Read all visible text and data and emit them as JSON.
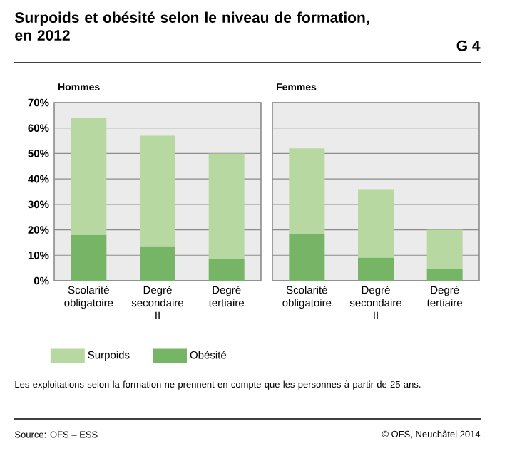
{
  "chart_data": [
    {
      "type": "other",
      "title": "Surpoids et obésité selon le niveau de formation, en 2012",
      "annotations": [
        "G 4",
        "Les exploitations selon la formation ne prennent en compte que les personnes à partir de 25 ans.",
        "Source: OFS – ESS",
        "© OFS, Neuchâtel 2014"
      ]
    },
    {
      "type": "bar",
      "title": "Hommes",
      "stacked": true,
      "legend": "bottom",
      "grid": "y",
      "categories": [
        "Scolarité obligatoire",
        "Degré secondaire II",
        "Degré tertiaire"
      ],
      "series": [
        {
          "name": "Obésité",
          "color": "#76b565",
          "values": [
            18,
            13.5,
            8.5
          ]
        },
        {
          "name": "Surpoids",
          "color": "#b8d8a2",
          "values": [
            46,
            43.5,
            41.5
          ]
        }
      ],
      "ylim": [
        0,
        70
      ],
      "yticks": [
        {
          "value": 0,
          "label": "0%"
        },
        {
          "value": 10,
          "label": "10%"
        },
        {
          "value": 20,
          "label": "20%"
        },
        {
          "value": 30,
          "label": "30%"
        },
        {
          "value": 40,
          "label": "40%"
        },
        {
          "value": 50,
          "label": "50%"
        },
        {
          "value": 60,
          "label": "60%"
        },
        {
          "value": 70,
          "label": "70%"
        }
      ]
    },
    {
      "type": "bar",
      "title": "Femmes",
      "stacked": true,
      "grid": "y",
      "tick_labels": "x",
      "categories": [
        "Scolarité obligatoire",
        "Degré secondaire II",
        "Degré tertiaire"
      ],
      "series": [
        {
          "color": "#76b565",
          "values": [
            18.5,
            9,
            4.5
          ]
        },
        {
          "color": "#b8d8a2",
          "values": [
            33.5,
            27,
            15.5
          ]
        }
      ],
      "ylim": [
        0,
        70
      ],
      "yticks": [
        {
          "value": 0,
          "label": null
        },
        {
          "value": 10,
          "label": null
        },
        {
          "value": 20,
          "label": null
        },
        {
          "value": 30,
          "label": null
        },
        {
          "value": 40,
          "label": null
        },
        {
          "value": 50,
          "label": null
        },
        {
          "value": 60,
          "label": null
        },
        {
          "value": 70,
          "label": null
        }
      ]
    }
  ]
}
